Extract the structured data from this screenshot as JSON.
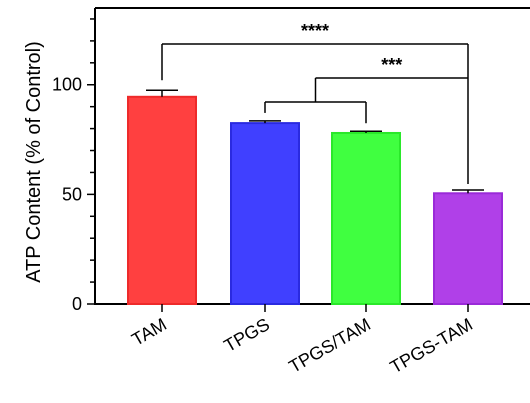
{
  "chart_data": {
    "type": "bar",
    "title": "",
    "ylabel": "ATP Content (% of Control)",
    "xlabel": "",
    "ylim": [
      0,
      135
    ],
    "yticks": [
      0,
      50,
      100
    ],
    "categories": [
      "TAM",
      "TPGS",
      "TPGS/TAM",
      "TPGS-TAM"
    ],
    "values": [
      94.5,
      82.5,
      78.0,
      50.5
    ],
    "errors": [
      3.0,
      1.0,
      0.8,
      1.5
    ],
    "colors": [
      "#ff4040",
      "#4040ff",
      "#40ff40",
      "#b040e8"
    ],
    "edge_colors": [
      "#ee2a2a",
      "#2a2ae0",
      "#2ae82a",
      "#9a2ad8"
    ],
    "significance": [
      {
        "label": "****",
        "from": "TAM",
        "to": "TPGS-TAM"
      },
      {
        "label": "***",
        "from": [
          "TPGS",
          "TPGS/TAM"
        ],
        "to": "TPGS-TAM"
      }
    ],
    "grid": false,
    "legend": "none"
  }
}
